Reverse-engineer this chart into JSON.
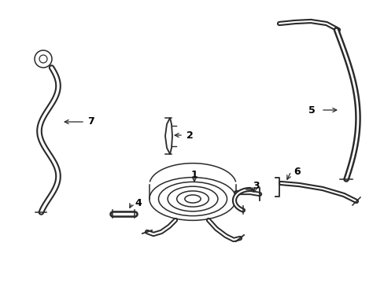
{
  "background": "#ffffff",
  "line_color": "#2a2a2a",
  "label_color": "#000000",
  "figsize": [
    4.89,
    3.6
  ],
  "dpi": 100,
  "xlim": [
    0,
    489
  ],
  "ylim": [
    0,
    360
  ]
}
